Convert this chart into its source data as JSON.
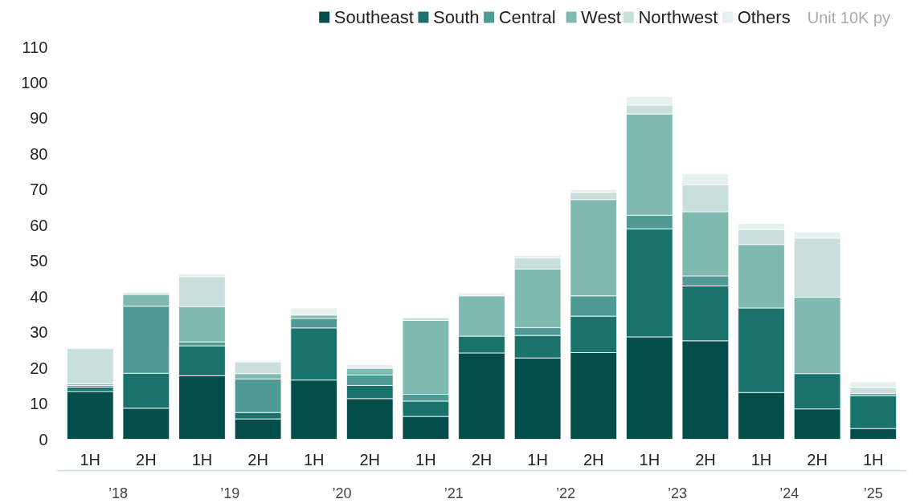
{
  "chart_data": {
    "type": "bar",
    "stacked": true,
    "ylabel": "Unit  10K py",
    "categories": [
      "1H",
      "2H",
      "1H",
      "2H",
      "1H",
      "2H",
      "1H",
      "2H",
      "1H",
      "2H",
      "1H",
      "2H",
      "1H",
      "2H",
      "1H"
    ],
    "annotations": [
      "’18",
      "’19",
      "’20",
      "’21",
      "’22",
      "’23",
      "’24",
      "’25"
    ],
    "series": [
      {
        "name": "Southeast",
        "color": "#034e4a",
        "values": [
          13.4,
          8.7,
          17.8,
          5.7,
          16.6,
          11.4,
          6.4,
          24.2,
          22.8,
          24.3,
          28.7,
          27.6,
          13.1,
          8.5,
          3.0
        ]
      },
      {
        "name": "South",
        "color": "#19726b",
        "values": [
          1.2,
          9.8,
          8.4,
          1.8,
          14.6,
          3.7,
          4.3,
          4.7,
          6.3,
          10.2,
          30.3,
          15.4,
          23.7,
          9.9,
          9.2
        ]
      },
      {
        "name": "Central",
        "color": "#4f9a94",
        "values": [
          0.5,
          18.8,
          1.1,
          9.4,
          2.7,
          2.9,
          1.9,
          0,
          2.2,
          5.7,
          3.8,
          2.8,
          0,
          0,
          0.6
        ]
      },
      {
        "name": "West",
        "color": "#7ebab0",
        "values": [
          0.5,
          3.3,
          9.9,
          1.5,
          0.9,
          1.9,
          20.7,
          11.3,
          16.4,
          27.0,
          28.4,
          18.0,
          17.8,
          21.4,
          0
        ]
      },
      {
        "name": "Northwest",
        "color": "#c8dfdc",
        "values": [
          9.8,
          0.5,
          8.4,
          3.3,
          0,
          0,
          0.8,
          0,
          3.2,
          2.0,
          2.5,
          7.5,
          4.2,
          16.6,
          1.6
        ]
      },
      {
        "name": "Others",
        "color": "#e6f0f1",
        "values": [
          0,
          0,
          0.8,
          0.4,
          2.0,
          1.0,
          0.2,
          0.8,
          0.6,
          0.8,
          2.4,
          3.1,
          1.7,
          1.7,
          1.7
        ]
      }
    ],
    "ylim": [
      0,
      110
    ],
    "yticks": [
      0,
      10,
      20,
      30,
      40,
      50,
      60,
      70,
      80,
      90,
      100,
      110
    ],
    "grid": false,
    "legend": "top right"
  }
}
